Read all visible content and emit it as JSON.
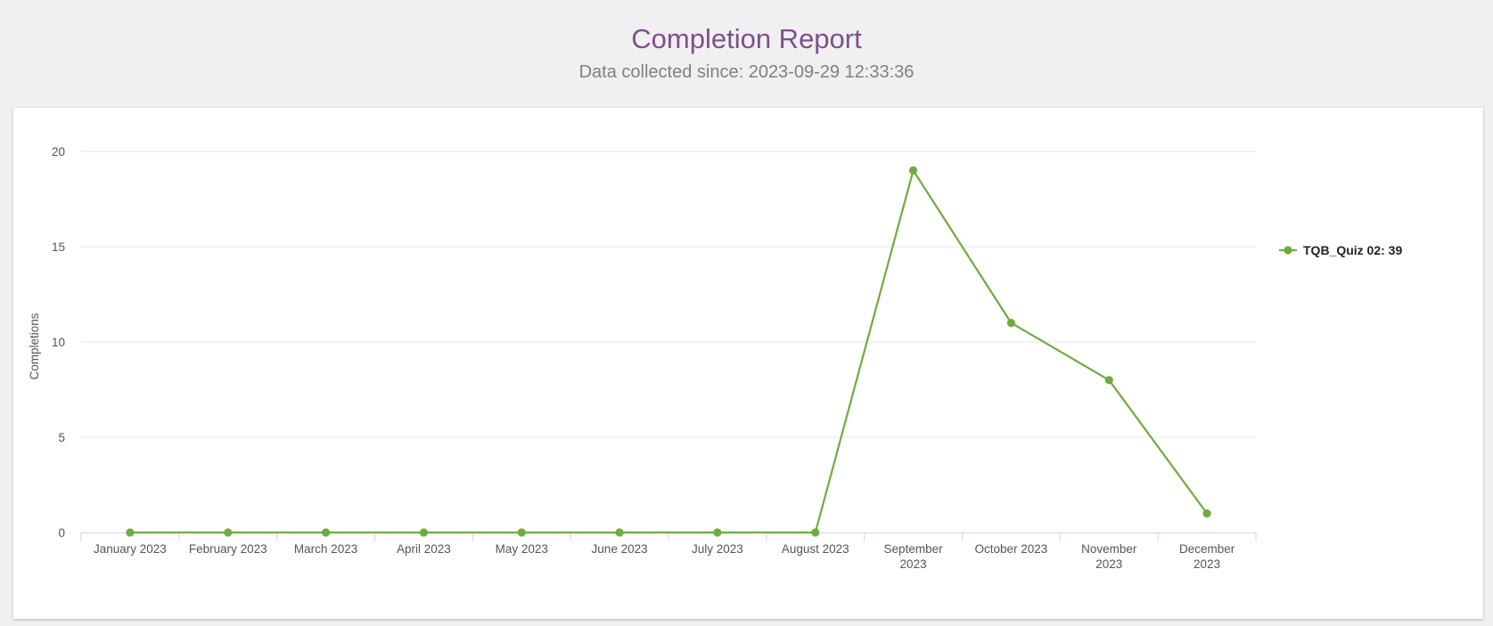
{
  "header": {
    "title": "Completion Report",
    "subtitle": "Data collected since: 2023-09-29 12:33:36"
  },
  "colors": {
    "series": "#6fac3e",
    "title": "#7e4f8e"
  },
  "chart_data": {
    "type": "line",
    "title": "",
    "xlabel": "",
    "ylabel": "Completions",
    "ylim": [
      0,
      20
    ],
    "yticks": [
      "0",
      "5",
      "10",
      "15",
      "20"
    ],
    "grid": true,
    "legend_position": "right",
    "categories": [
      [
        "January 2023"
      ],
      [
        "February 2023"
      ],
      [
        "March 2023"
      ],
      [
        "April 2023"
      ],
      [
        "May 2023"
      ],
      [
        "June 2023"
      ],
      [
        "July 2023"
      ],
      [
        "August 2023"
      ],
      [
        "September",
        "2023"
      ],
      [
        "October 2023"
      ],
      [
        "November",
        "2023"
      ],
      [
        "December",
        "2023"
      ]
    ],
    "series": [
      {
        "name": "TQB_Quiz 02: 39",
        "values": [
          0,
          0,
          0,
          0,
          0,
          0,
          0,
          0,
          19,
          11,
          8,
          1
        ]
      }
    ]
  }
}
